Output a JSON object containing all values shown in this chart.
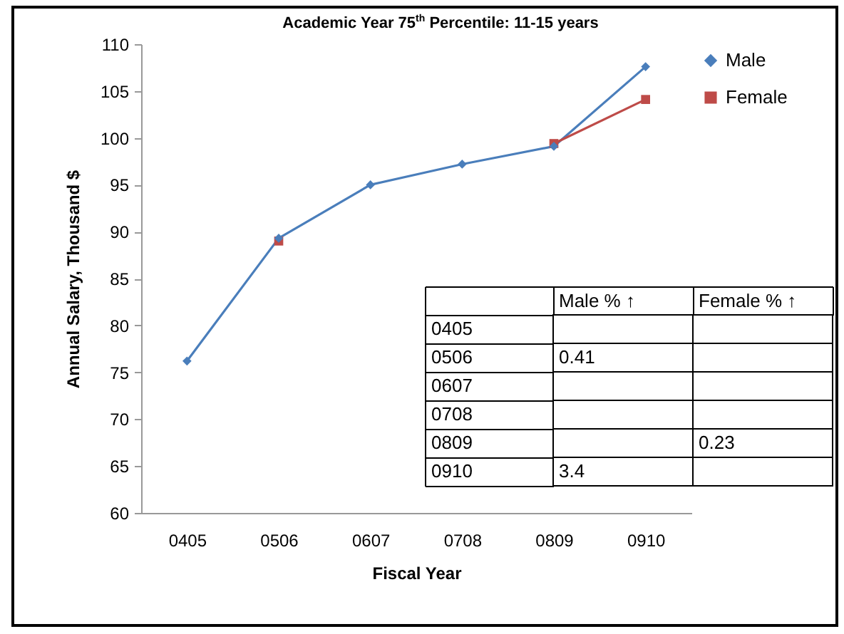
{
  "chart_data": [
    {
      "type": "line",
      "title": "Academic Year 75$^{th}$ Percentile: 11-15 years",
      "xlabel": "Fiscal Year",
      "ylabel": "Annual Salary, Thousand $",
      "categories": [
        "0405",
        "0506",
        "0607",
        "0708",
        "0809",
        "0910"
      ],
      "series": [
        {
          "name": "Male",
          "color": "#4a7ebb",
          "marker": "diamond",
          "values": [
            76.2,
            89.3,
            95.0,
            97.2,
            99.1,
            107.6
          ]
        },
        {
          "name": "Female",
          "color": "#be4b48",
          "marker": "square",
          "values": [
            null,
            89.0,
            null,
            null,
            99.4,
            104.1
          ]
        }
      ],
      "ylim": [
        60,
        110
      ],
      "yticks": [
        60,
        65,
        70,
        75,
        80,
        85,
        90,
        95,
        100,
        105,
        110
      ],
      "grid": false,
      "legend": "top right",
      "line_style": "solid"
    },
    {
      "type": "heatmap",
      "categories": [
        "Male % ↑",
        "Female % ↑"
      ],
      "y_categories": [
        "0405",
        "0506",
        "0607",
        "0708",
        "0809",
        "0910"
      ],
      "cells": [
        [
          null,
          null
        ],
        [
          0.41,
          null
        ],
        [
          null,
          null
        ],
        [
          null,
          null
        ],
        [
          null,
          0.23
        ],
        [
          3.4,
          null
        ]
      ],
      "data_labels": true
    }
  ]
}
